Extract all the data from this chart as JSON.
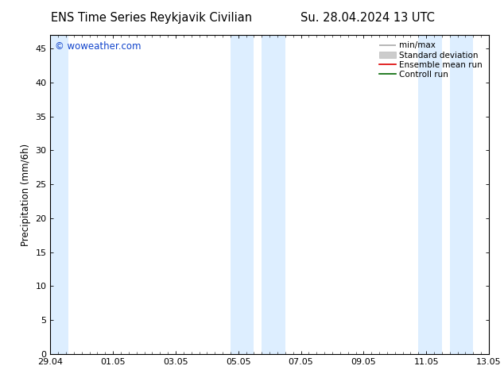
{
  "title_left": "ENS Time Series Reykjavik Civilian",
  "title_right": "Su. 28.04.2024 13 UTC",
  "ylabel": "Precipitation (mm/6h)",
  "watermark": "© woweather.com",
  "watermark_color": "#1144cc",
  "xlim_start": 0,
  "xlim_end": 336,
  "ylim": [
    0,
    47
  ],
  "yticks": [
    0,
    5,
    10,
    15,
    20,
    25,
    30,
    35,
    40,
    45
  ],
  "xtick_labels": [
    "29.04",
    "01.05",
    "03.05",
    "05.05",
    "07.05",
    "09.05",
    "11.05",
    "13.05"
  ],
  "xtick_positions": [
    0,
    48,
    96,
    144,
    192,
    240,
    288,
    336
  ],
  "shaded_bands": [
    {
      "xmin": 0,
      "xmax": 14,
      "color": "#ddeeff"
    },
    {
      "xmin": 138,
      "xmax": 156,
      "color": "#ddeeff"
    },
    {
      "xmin": 162,
      "xmax": 180,
      "color": "#ddeeff"
    },
    {
      "xmin": 282,
      "xmax": 300,
      "color": "#ddeeff"
    },
    {
      "xmin": 306,
      "xmax": 324,
      "color": "#ddeeff"
    }
  ],
  "legend_items": [
    {
      "label": "min/max",
      "color": "#aaaaaa",
      "lw": 1.2,
      "style": "minmax"
    },
    {
      "label": "Standard deviation",
      "color": "#cccccc",
      "lw": 5,
      "style": "fill"
    },
    {
      "label": "Ensemble mean run",
      "color": "#dd0000",
      "lw": 1.2,
      "style": "line"
    },
    {
      "label": "Controll run",
      "color": "#006600",
      "lw": 1.2,
      "style": "line"
    }
  ],
  "background_color": "#ffffff",
  "plot_bg_color": "#ffffff",
  "tick_fontsize": 8,
  "label_fontsize": 8.5,
  "title_fontsize": 10.5
}
